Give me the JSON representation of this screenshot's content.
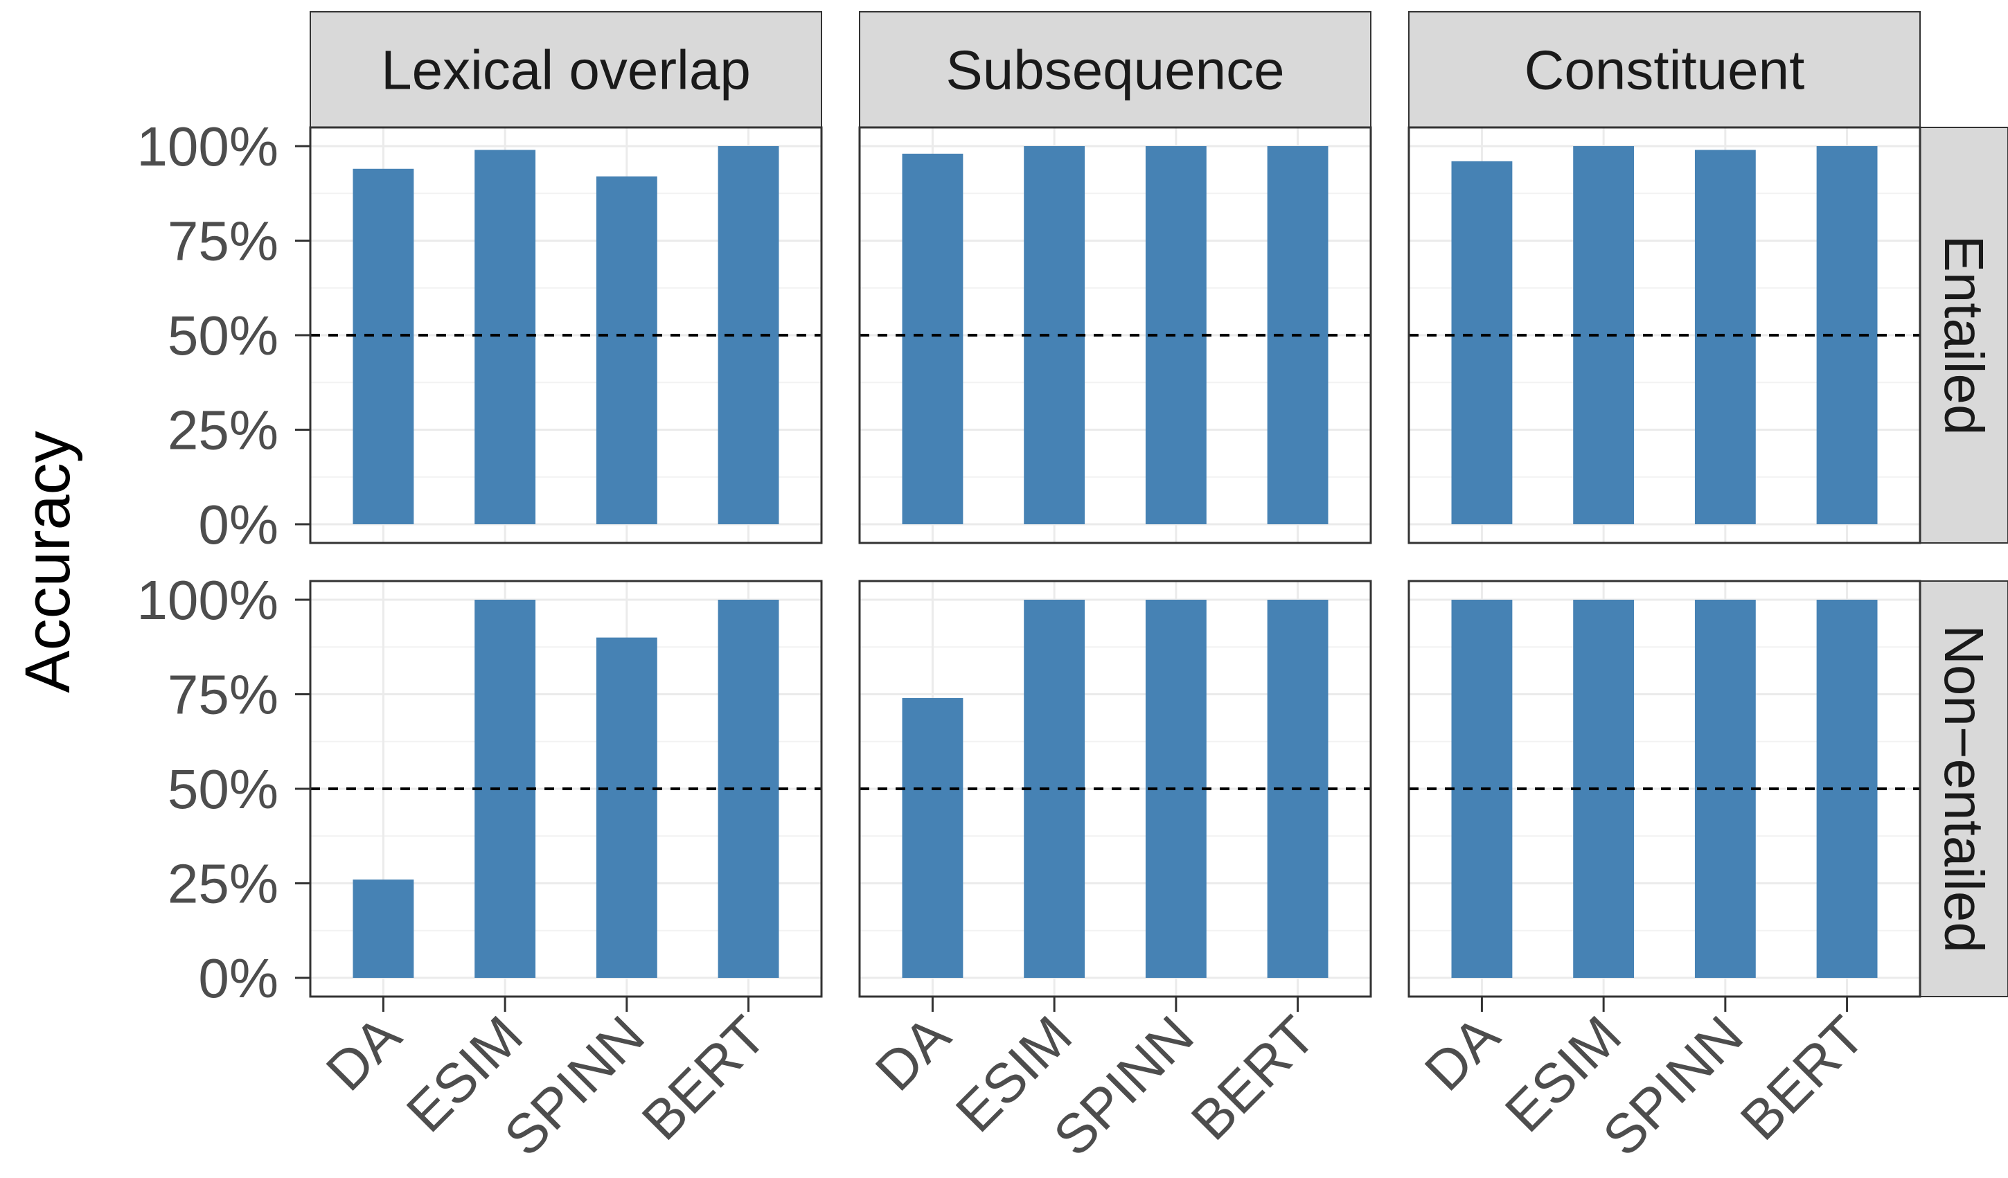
{
  "chart_data": {
    "type": "bar",
    "facet_columns": [
      "Lexical overlap",
      "Subsequence",
      "Constituent"
    ],
    "facet_rows": [
      "Entailed",
      "Non−entailed"
    ],
    "categories": [
      "DA",
      "ESIM",
      "SPINN",
      "BERT"
    ],
    "panels": [
      {
        "column": "Lexical overlap",
        "row": "Entailed",
        "values": [
          0.94,
          0.99,
          0.92,
          1.0
        ]
      },
      {
        "column": "Subsequence",
        "row": "Entailed",
        "values": [
          0.98,
          1.0,
          1.0,
          1.0
        ]
      },
      {
        "column": "Constituent",
        "row": "Entailed",
        "values": [
          0.96,
          1.0,
          0.99,
          1.0
        ]
      },
      {
        "column": "Lexical overlap",
        "row": "Non−entailed",
        "values": [
          0.26,
          1.0,
          0.9,
          1.0
        ]
      },
      {
        "column": "Subsequence",
        "row": "Non−entailed",
        "values": [
          0.74,
          1.0,
          1.0,
          1.0
        ]
      },
      {
        "column": "Constituent",
        "row": "Non−entailed",
        "values": [
          1.0,
          1.0,
          1.0,
          1.0
        ]
      }
    ],
    "yticks": [
      0,
      0.25,
      0.5,
      0.75,
      1.0
    ],
    "ytick_labels": [
      "0%",
      "25%",
      "50%",
      "75%",
      "100%"
    ],
    "ylabel": "Accuracy",
    "xlabel": "",
    "ylim": [
      0,
      1
    ],
    "reference_line": 0.5,
    "bar_color": "#4682B4",
    "grid": true
  }
}
